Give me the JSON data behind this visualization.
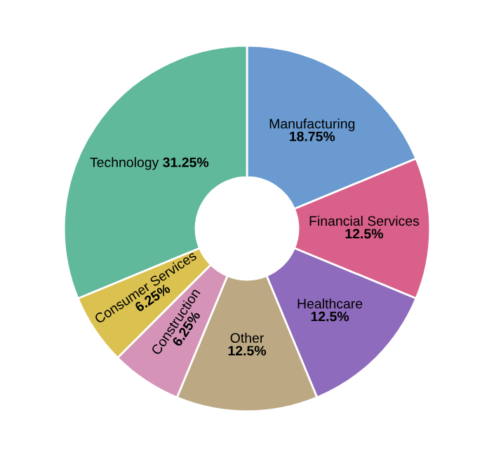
{
  "chart_data": {
    "type": "donut",
    "categories": [
      "Manufacturing",
      "Financial Services",
      "Healthcare",
      "Other",
      "Construction",
      "Consumer Services",
      "Technology"
    ],
    "values": [
      18.75,
      12.5,
      12.5,
      12.5,
      6.25,
      6.25,
      31.25
    ],
    "value_labels": [
      "18.75%",
      "12.5%",
      "12.5%",
      "12.5%",
      "6.25%",
      "6.25%",
      "31.25%"
    ],
    "colors": [
      "#6a9ad0",
      "#d9608a",
      "#8e6bbd",
      "#bca983",
      "#d593b8",
      "#dbc250",
      "#60b99a"
    ],
    "legend": false
  }
}
